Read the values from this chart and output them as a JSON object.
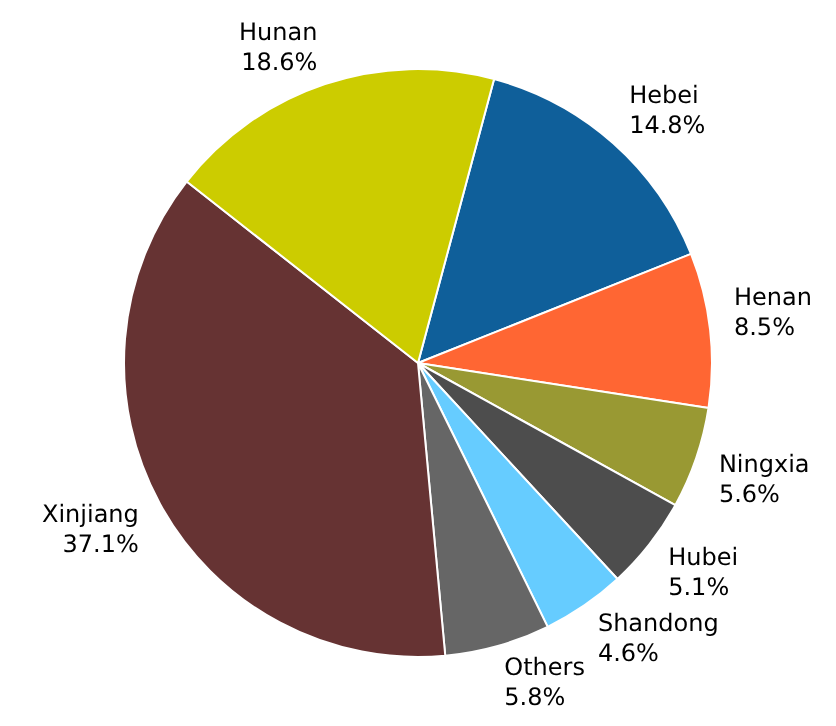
{
  "chart_data": {
    "type": "pie",
    "categories": [
      "Hebei",
      "Henan",
      "Ningxia",
      "Hubei",
      "Shandong",
      "Others",
      "Xinjiang",
      "Hunan"
    ],
    "values": [
      14.8,
      8.5,
      5.6,
      5.1,
      4.6,
      5.8,
      37.1,
      18.6
    ],
    "value_labels": [
      "14.8%",
      "8.5%",
      "5.6%",
      "5.1%",
      "4.6%",
      "5.8%",
      "37.1%",
      "18.6%"
    ],
    "colors": [
      "#0f5f9a",
      "#ff6633",
      "#999933",
      "#4d4d4d",
      "#66ccff",
      "#666666",
      "#663333",
      "#cccc00"
    ],
    "legend": false
  }
}
